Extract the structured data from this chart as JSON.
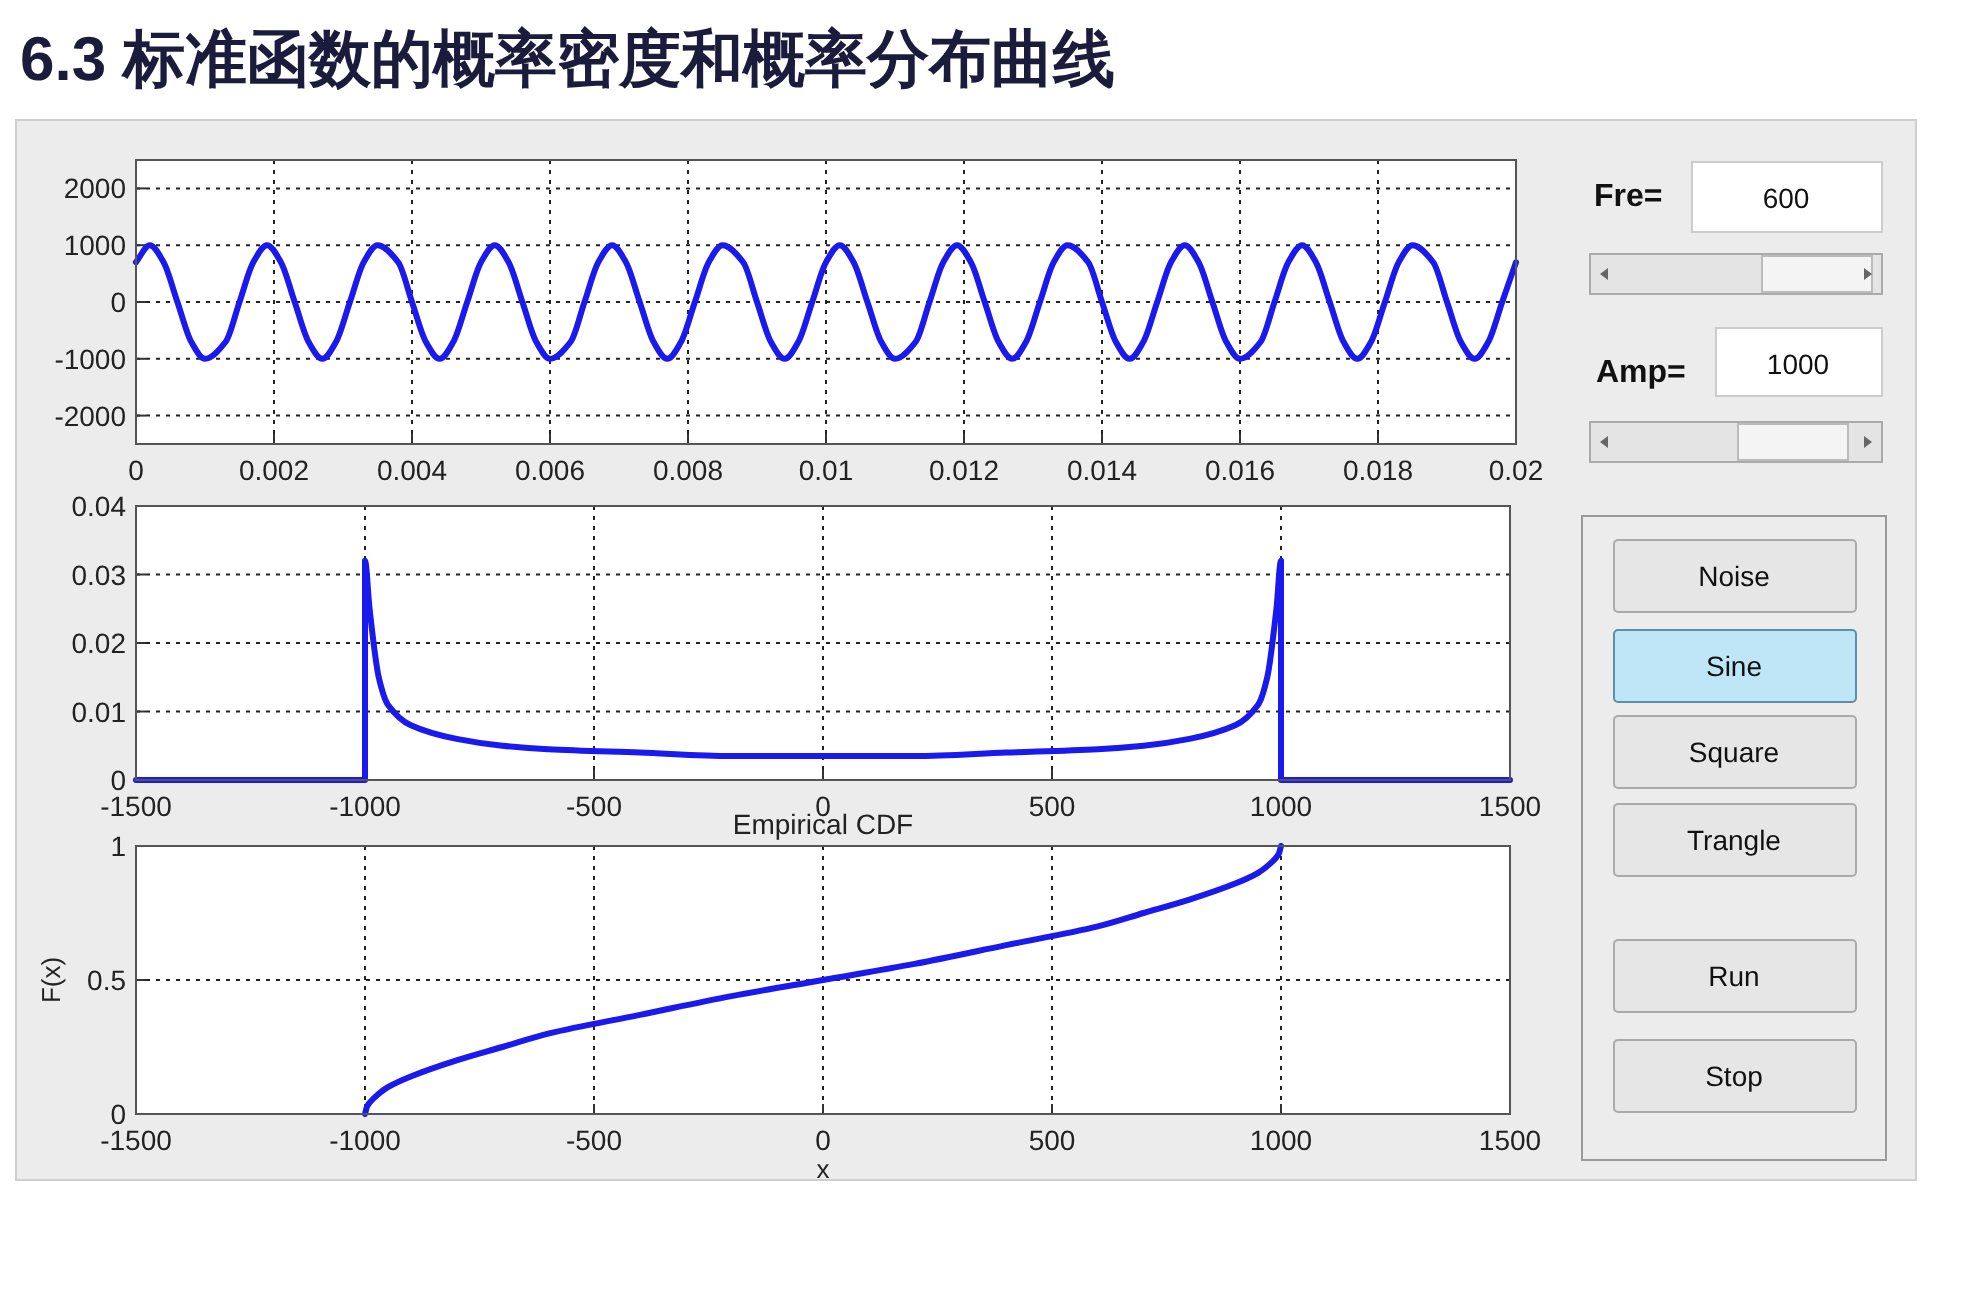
{
  "chart_data": [
    {
      "type": "line",
      "title": "6.3 标准函数的概率密度和概率分布曲线",
      "xlim": [
        0,
        0.02
      ],
      "ylim": [
        -2500,
        2500
      ],
      "xticks": [
        0,
        0.002,
        0.004,
        0.006,
        0.008,
        0.01,
        0.012,
        0.014,
        0.016,
        0.018,
        0.02
      ],
      "yticks": [
        -2000,
        -1000,
        0,
        1000,
        2000
      ],
      "grid": true,
      "series": [
        {
          "color": "#1a1aee",
          "x": [
            0,
            0.0002,
            0.0004,
            0.0006,
            0.0008,
            0.001,
            0.0013,
            0.0015,
            0.0017,
            0.0019,
            0.0021,
            0.0023,
            0.0025,
            0.0027,
            0.0029,
            0.0031,
            0.0033,
            0.0035,
            0.0038,
            0.004,
            0.0042,
            0.0044,
            0.0046,
            0.0048,
            0.005,
            0.0052,
            0.0054,
            0.0056,
            0.0058,
            0.006,
            0.0063,
            0.0065,
            0.0067,
            0.0069,
            0.0071,
            0.0073,
            0.0075,
            0.0077,
            0.0079,
            0.0081,
            0.0083,
            0.0085,
            0.0088,
            0.009,
            0.0092,
            0.0094,
            0.0096,
            0.0098,
            0.01,
            0.0102,
            0.0104,
            0.0106,
            0.0108,
            0.011,
            0.0113,
            0.0115,
            0.0117,
            0.0119,
            0.0121,
            0.0123,
            0.0125,
            0.0127,
            0.0129,
            0.0131,
            0.0133,
            0.0135,
            0.0138,
            0.014,
            0.0142,
            0.0144,
            0.0146,
            0.0148,
            0.015,
            0.0152,
            0.0154,
            0.0156,
            0.0158,
            0.016,
            0.0163,
            0.0165,
            0.0167,
            0.0169,
            0.0171,
            0.0173,
            0.0175,
            0.0177,
            0.0179,
            0.0181,
            0.0183,
            0.0185,
            0.0188,
            0.019,
            0.0192,
            0.0194,
            0.0196,
            0.0198,
            0.02
          ],
          "values": [
            700,
            1000,
            700,
            0,
            -700,
            -1000,
            -700,
            0,
            700,
            1000,
            700,
            0,
            -700,
            -1000,
            -700,
            0,
            700,
            1000,
            700,
            0,
            -700,
            -1000,
            -700,
            0,
            700,
            1000,
            700,
            0,
            -700,
            -1000,
            -700,
            0,
            700,
            1000,
            700,
            0,
            -700,
            -1000,
            -700,
            0,
            700,
            1000,
            700,
            0,
            -700,
            -1000,
            -700,
            0,
            700,
            1000,
            700,
            0,
            -700,
            -1000,
            -700,
            0,
            700,
            1000,
            700,
            0,
            -700,
            -1000,
            -700,
            0,
            700,
            1000,
            700,
            0,
            -700,
            -1000,
            -700,
            0,
            700,
            1000,
            700,
            0,
            -700,
            -1000,
            -700,
            0,
            700,
            1000,
            700,
            0,
            -700,
            -1000,
            -700,
            0,
            700,
            1000,
            700,
            0,
            -700,
            -1000,
            -700,
            0,
            700
          ]
        }
      ]
    },
    {
      "type": "line",
      "xlim": [
        -1500,
        1500
      ],
      "ylim": [
        0,
        0.04
      ],
      "xticks": [
        -1500,
        -1000,
        -500,
        0,
        500,
        1000,
        1500
      ],
      "yticks": [
        0,
        0.01,
        0.02,
        0.03,
        0.04
      ],
      "grid": true,
      "series": [
        {
          "color": "#1a1aee",
          "x": [
            -1500,
            -1000,
            -1000,
            -990,
            -970,
            -950,
            -900,
            -800,
            -700,
            -600,
            -400,
            -200,
            0,
            200,
            400,
            600,
            700,
            800,
            900,
            950,
            970,
            990,
            1000,
            1000,
            1500
          ],
          "values": [
            0,
            0,
            0.032,
            0.025,
            0.015,
            0.011,
            0.008,
            0.006,
            0.005,
            0.0045,
            0.004,
            0.0035,
            0.0035,
            0.0035,
            0.004,
            0.0045,
            0.005,
            0.006,
            0.008,
            0.011,
            0.015,
            0.025,
            0.032,
            0,
            0
          ]
        }
      ]
    },
    {
      "type": "line",
      "title": "Empirical CDF",
      "xlabel": "x",
      "ylabel": "F(x)",
      "xlim": [
        -1500,
        1500
      ],
      "ylim": [
        0,
        1
      ],
      "xticks": [
        -1500,
        -1000,
        -500,
        0,
        500,
        1000,
        1500
      ],
      "yticks": [
        0,
        0.5,
        1
      ],
      "grid": true,
      "series": [
        {
          "color": "#1a1aee",
          "x": [
            -1000,
            -995,
            -980,
            -950,
            -900,
            -800,
            -700,
            -600,
            -400,
            -200,
            0,
            200,
            400,
            600,
            700,
            800,
            900,
            950,
            980,
            995,
            1000
          ],
          "values": [
            0,
            0.03,
            0.06,
            0.1,
            0.14,
            0.2,
            0.25,
            0.3,
            0.37,
            0.44,
            0.5,
            0.56,
            0.63,
            0.7,
            0.75,
            0.8,
            0.86,
            0.9,
            0.94,
            0.97,
            1
          ]
        }
      ]
    },
    {
      "type": "other",
      "annotations": [
        "Fre=",
        "600",
        "Amp=",
        "1000",
        "Noise",
        "Sine",
        "Square",
        "Trangle",
        "Run",
        "Stop"
      ]
    }
  ]
}
